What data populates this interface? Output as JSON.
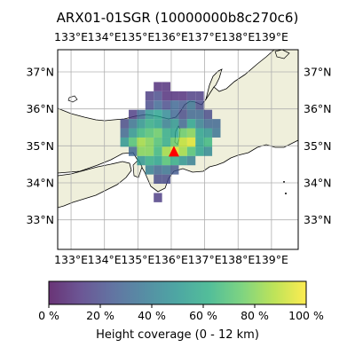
{
  "title": "ARX01-01SGR (10000000b8c270c6)",
  "map": {
    "lon_range": [
      132.6,
      139.8
    ],
    "lat_range": [
      32.2,
      37.6
    ],
    "lon_ticks": [
      133,
      134,
      135,
      136,
      137,
      138,
      139
    ],
    "lat_ticks": [
      33,
      34,
      35,
      36,
      37
    ],
    "lon_tick_labels": [
      "133°E",
      "134°E",
      "135°E",
      "136°E",
      "137°E",
      "138°E",
      "139°E"
    ],
    "lat_tick_labels": [
      "33°N",
      "34°N",
      "35°N",
      "36°N",
      "37°N"
    ],
    "grid": true,
    "land_color": "#efefdb",
    "sea_color": "#ffffff",
    "coastline_color": "#000000",
    "cell_size_deg": 0.25,
    "cells": [
      [
        135.6,
        36.6,
        0.1
      ],
      [
        135.85,
        36.6,
        0.1
      ],
      [
        135.35,
        36.35,
        0.15
      ],
      [
        135.6,
        36.35,
        0.2
      ],
      [
        135.85,
        36.35,
        0.1
      ],
      [
        136.1,
        36.35,
        0.1
      ],
      [
        136.35,
        36.35,
        0.1
      ],
      [
        136.6,
        36.35,
        0.15
      ],
      [
        136.85,
        36.35,
        0.15
      ],
      [
        135.35,
        36.1,
        0.2
      ],
      [
        135.6,
        36.1,
        0.3
      ],
      [
        135.85,
        36.1,
        0.2
      ],
      [
        136.1,
        36.1,
        0.3
      ],
      [
        136.35,
        36.1,
        0.25
      ],
      [
        136.6,
        36.1,
        0.35
      ],
      [
        136.85,
        36.1,
        0.2
      ],
      [
        134.85,
        35.85,
        0.15
      ],
      [
        135.1,
        35.85,
        0.3
      ],
      [
        135.35,
        35.85,
        0.5
      ],
      [
        135.6,
        35.85,
        0.55
      ],
      [
        135.85,
        35.85,
        0.45
      ],
      [
        136.1,
        35.85,
        0.3
      ],
      [
        136.35,
        35.85,
        0.2
      ],
      [
        136.6,
        35.85,
        0.3
      ],
      [
        136.85,
        35.85,
        0.3
      ],
      [
        137.1,
        35.85,
        0.2
      ],
      [
        134.6,
        35.6,
        0.2
      ],
      [
        134.85,
        35.6,
        0.35
      ],
      [
        135.1,
        35.6,
        0.5
      ],
      [
        135.35,
        35.6,
        0.6
      ],
      [
        135.6,
        35.6,
        0.55
      ],
      [
        135.85,
        35.6,
        0.4
      ],
      [
        136.1,
        35.6,
        0.5
      ],
      [
        136.35,
        35.6,
        0.3
      ],
      [
        136.6,
        35.6,
        0.55
      ],
      [
        136.85,
        35.6,
        0.4
      ],
      [
        137.1,
        35.6,
        0.3
      ],
      [
        137.35,
        35.6,
        0.3
      ],
      [
        134.6,
        35.35,
        0.3
      ],
      [
        134.85,
        35.35,
        0.5
      ],
      [
        135.1,
        35.35,
        0.65
      ],
      [
        135.35,
        35.35,
        0.7
      ],
      [
        135.6,
        35.35,
        0.75
      ],
      [
        135.85,
        35.35,
        0.6
      ],
      [
        136.1,
        35.35,
        0.55
      ],
      [
        136.35,
        35.35,
        0.75
      ],
      [
        136.6,
        35.35,
        0.8
      ],
      [
        136.85,
        35.35,
        0.55
      ],
      [
        137.1,
        35.35,
        0.5
      ],
      [
        137.35,
        35.35,
        0.35
      ],
      [
        134.6,
        35.1,
        0.5
      ],
      [
        134.85,
        35.1,
        0.7
      ],
      [
        135.1,
        35.1,
        0.85
      ],
      [
        135.35,
        35.1,
        0.8
      ],
      [
        135.6,
        35.1,
        0.7
      ],
      [
        135.85,
        35.1,
        0.6
      ],
      [
        136.1,
        35.1,
        0.75
      ],
      [
        136.35,
        35.1,
        0.9
      ],
      [
        136.6,
        35.1,
        0.95
      ],
      [
        136.85,
        35.1,
        0.55
      ],
      [
        137.1,
        35.1,
        0.65
      ],
      [
        134.85,
        34.85,
        0.3
      ],
      [
        135.1,
        34.85,
        0.8
      ],
      [
        135.35,
        34.85,
        0.8
      ],
      [
        135.6,
        34.85,
        0.65
      ],
      [
        135.85,
        34.85,
        0.85
      ],
      [
        136.1,
        34.85,
        0.95
      ],
      [
        136.35,
        34.85,
        0.85
      ],
      [
        136.6,
        34.85,
        0.7
      ],
      [
        136.85,
        34.85,
        0.55
      ],
      [
        137.1,
        34.85,
        0.45
      ],
      [
        135.1,
        34.6,
        0.5
      ],
      [
        135.35,
        34.6,
        0.6
      ],
      [
        135.6,
        34.6,
        0.55
      ],
      [
        135.85,
        34.6,
        0.7
      ],
      [
        136.1,
        34.6,
        0.6
      ],
      [
        136.35,
        34.6,
        0.5
      ],
      [
        136.6,
        34.6,
        0.4
      ],
      [
        135.35,
        34.35,
        0.4
      ],
      [
        135.6,
        34.35,
        0.3
      ],
      [
        135.85,
        34.35,
        0.35
      ],
      [
        136.1,
        34.35,
        0.25
      ],
      [
        135.6,
        34.1,
        0.2
      ],
      [
        135.85,
        34.1,
        0.2
      ],
      [
        135.6,
        33.6,
        0.15
      ]
    ],
    "marker": {
      "lon": 136.08,
      "lat": 34.83,
      "shape": "triangle",
      "color": "#ff0000"
    }
  },
  "colorbar": {
    "label": "Height coverage (0 - 12 km)",
    "ticks": [
      "0 %",
      "20 %",
      "40 %",
      "60 %",
      "80 %",
      "100 %"
    ],
    "colormap": "viridis",
    "alpha": 0.8
  }
}
